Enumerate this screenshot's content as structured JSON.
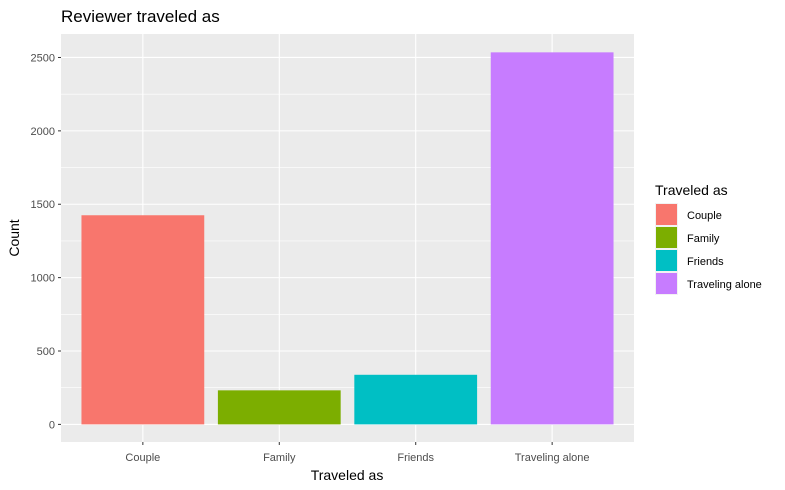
{
  "chart_data": {
    "type": "bar",
    "title": "Reviewer traveled as",
    "xlabel": "Traveled as",
    "ylabel": "Count",
    "categories": [
      "Couple",
      "Family",
      "Friends",
      "Traveling alone"
    ],
    "values": [
      1425,
      232,
      338,
      2535
    ],
    "colors": [
      "#F8766D",
      "#7CAE00",
      "#00BFC4",
      "#C77CFF"
    ],
    "ylim": [
      -120,
      2660
    ],
    "yticks": [
      0,
      500,
      1000,
      1500,
      2000,
      2500
    ],
    "ytick_labels": [
      "0",
      "500",
      "1000",
      "1500",
      "2000",
      "2500"
    ],
    "grid": true,
    "legend": {
      "title": "Traveled as",
      "position": "right",
      "entries": [
        "Couple",
        "Family",
        "Friends",
        "Traveling alone"
      ]
    }
  },
  "colors": {
    "panel_background": "#EBEBEB",
    "grid_major": "#FFFFFF",
    "tick_text": "#4D4D4D"
  }
}
